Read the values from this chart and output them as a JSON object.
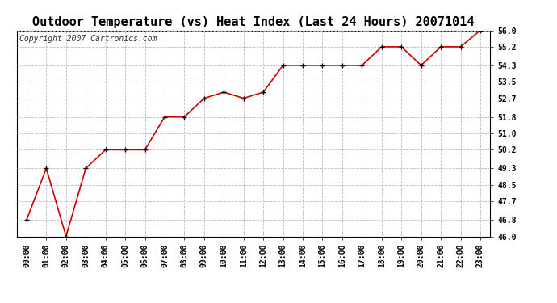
{
  "title": "Outdoor Temperature (vs) Heat Index (Last 24 Hours) 20071014",
  "copyright_text": "Copyright 2007 Cartronics.com",
  "x_labels": [
    "00:00",
    "01:00",
    "02:00",
    "03:00",
    "04:00",
    "05:00",
    "06:00",
    "07:00",
    "08:00",
    "09:00",
    "10:00",
    "11:00",
    "12:00",
    "13:00",
    "14:00",
    "15:00",
    "16:00",
    "17:00",
    "18:00",
    "19:00",
    "20:00",
    "21:00",
    "22:00",
    "23:00"
  ],
  "y_values": [
    46.8,
    49.3,
    46.0,
    49.3,
    50.2,
    50.2,
    50.2,
    51.8,
    51.8,
    52.7,
    53.0,
    52.7,
    53.0,
    54.3,
    54.3,
    54.3,
    54.3,
    54.3,
    55.2,
    55.2,
    54.3,
    55.2,
    55.2,
    56.0
  ],
  "line_color": "#cc0000",
  "marker": "+",
  "marker_color": "#000000",
  "marker_size": 5,
  "line_width": 1.2,
  "bg_color": "#ffffff",
  "grid_color": "#bbbbbb",
  "grid_style": "--",
  "ylim_min": 46.0,
  "ylim_max": 56.0,
  "yticks": [
    46.0,
    46.8,
    47.7,
    48.5,
    49.3,
    50.2,
    51.0,
    51.8,
    52.7,
    53.5,
    54.3,
    55.2,
    56.0
  ],
  "title_fontsize": 11,
  "copyright_fontsize": 7,
  "tick_fontsize": 7,
  "border_color": "#000000"
}
